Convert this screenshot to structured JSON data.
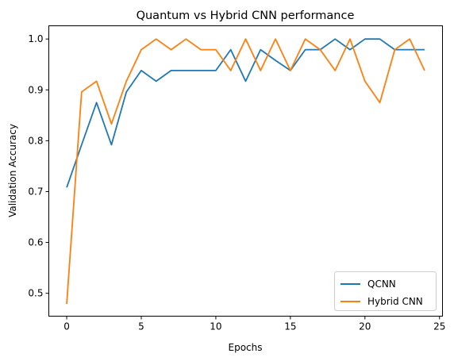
{
  "chart_data": {
    "type": "line",
    "title": "Quantum vs Hybrid CNN performance",
    "xlabel": "Epochs",
    "ylabel": "Validation Accuracy",
    "xlim": [
      -1.2,
      25.2
    ],
    "ylim": [
      0.455,
      1.026
    ],
    "x_ticks": [
      0,
      5,
      10,
      15,
      20,
      25
    ],
    "y_ticks": [
      0.5,
      0.6,
      0.7,
      0.8,
      0.9,
      1.0
    ],
    "x_tick_labels": [
      "0",
      "5",
      "10",
      "15",
      "20",
      "25"
    ],
    "y_tick_labels": [
      "0.5",
      "0.6",
      "0.7",
      "0.8",
      "0.9",
      "1.0"
    ],
    "grid": false,
    "legend_position": "bottom-right",
    "x": [
      0,
      1,
      2,
      3,
      4,
      5,
      6,
      7,
      8,
      9,
      10,
      11,
      12,
      13,
      14,
      15,
      16,
      17,
      18,
      19,
      20,
      21,
      22,
      23,
      24
    ],
    "series": [
      {
        "name": "QCNN",
        "color": "#1f77b4",
        "values": [
          0.708,
          0.792,
          0.875,
          0.792,
          0.896,
          0.938,
          0.917,
          0.938,
          0.938,
          0.938,
          0.938,
          0.979,
          0.917,
          0.979,
          0.958,
          0.938,
          0.979,
          0.979,
          1.0,
          0.979,
          1.0,
          1.0,
          0.979,
          0.979,
          0.979
        ]
      },
      {
        "name": "Hybrid CNN",
        "color": "#ff7f0e",
        "values": [
          0.479,
          0.896,
          0.917,
          0.833,
          0.917,
          0.979,
          1.0,
          0.979,
          1.0,
          0.979,
          0.979,
          0.938,
          1.0,
          0.938,
          1.0,
          0.938,
          1.0,
          0.979,
          0.938,
          1.0,
          0.917,
          0.875,
          0.979,
          1.0,
          0.938
        ]
      }
    ]
  }
}
